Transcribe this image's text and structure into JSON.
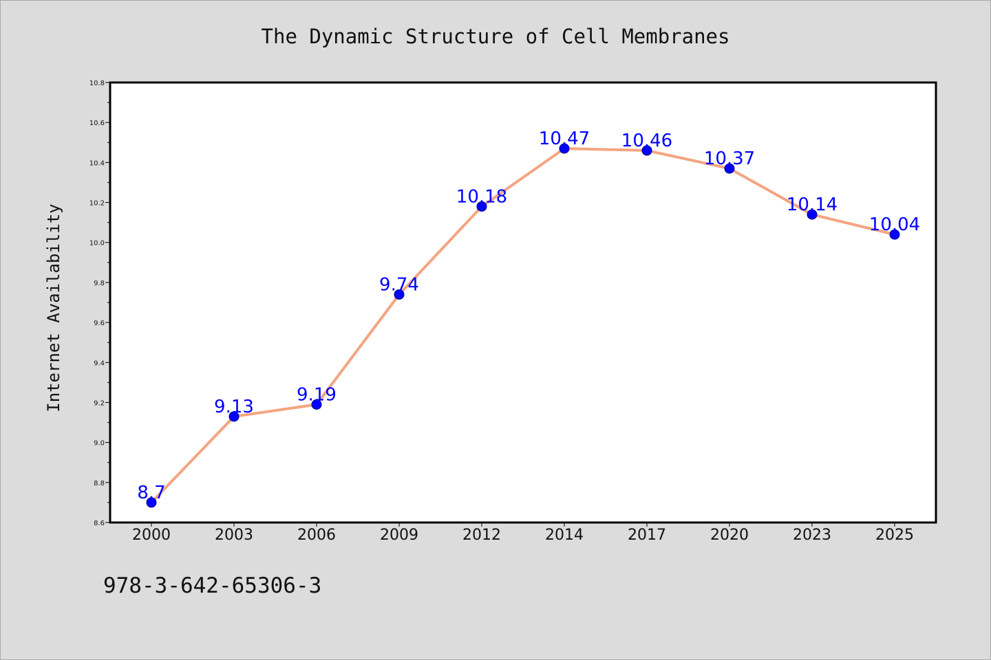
{
  "chart_data": {
    "type": "line",
    "title": "The Dynamic Structure of Cell Membranes",
    "xlabel": "",
    "ylabel": "Internet Availability",
    "categories": [
      "2000",
      "2003",
      "2006",
      "2009",
      "2012",
      "2014",
      "2017",
      "2020",
      "2023",
      "2025"
    ],
    "values": [
      8.7,
      9.13,
      9.19,
      9.74,
      10.18,
      10.47,
      10.46,
      10.37,
      10.14,
      10.04
    ],
    "data_labels": [
      "8.7",
      "9.13",
      "9.19",
      "9.74",
      "10.18",
      "10.47",
      "10.46",
      "10.37",
      "10.14",
      "10.04"
    ],
    "ylim": [
      8.6,
      10.8
    ],
    "yticks": [
      8.6,
      8.8,
      9.0,
      9.2,
      9.4,
      9.6,
      9.8,
      10.0,
      10.2,
      10.4,
      10.6,
      10.8
    ],
    "ytick_labels": [
      "8.6",
      "8.8",
      "9.0",
      "9.2",
      "9.4",
      "9.6",
      "9.8",
      "10.0",
      "10.2",
      "10.4",
      "10.6",
      "10.8"
    ],
    "grid": false,
    "colors": {
      "line": "#f4a582",
      "marker": "#0000ff",
      "data_label": "#0000ff",
      "plot_background": "#ffffff",
      "figure_background": "#dcdcdc"
    }
  },
  "footer": {
    "code": "978-3-642-65306-3"
  }
}
